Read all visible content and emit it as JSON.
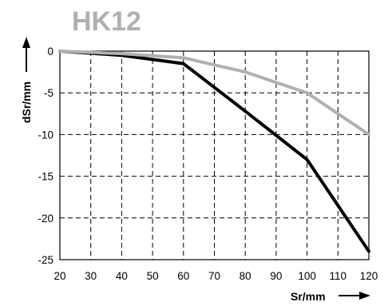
{
  "chart_data": {
    "type": "line",
    "title": "HK12",
    "xlabel": "Sr/mm",
    "ylabel": "dSr/mm",
    "xlim": [
      20,
      120
    ],
    "ylim": [
      -25,
      0
    ],
    "x_ticks": [
      20,
      30,
      40,
      50,
      60,
      70,
      80,
      90,
      100,
      110,
      120
    ],
    "y_ticks": [
      0,
      -5,
      -10,
      -15,
      -20,
      -25
    ],
    "grid": true,
    "series": [
      {
        "color": "#000000",
        "x": [
          20,
          40,
          60,
          80,
          100,
          120
        ],
        "y": [
          0,
          -0.5,
          -1.5,
          -7.2,
          -13,
          -24
        ]
      },
      {
        "color": "#b0b0b0",
        "x": [
          20,
          40,
          60,
          80,
          100,
          120
        ],
        "y": [
          0,
          -0.3,
          -0.8,
          -2.5,
          -5,
          -10
        ]
      }
    ]
  }
}
